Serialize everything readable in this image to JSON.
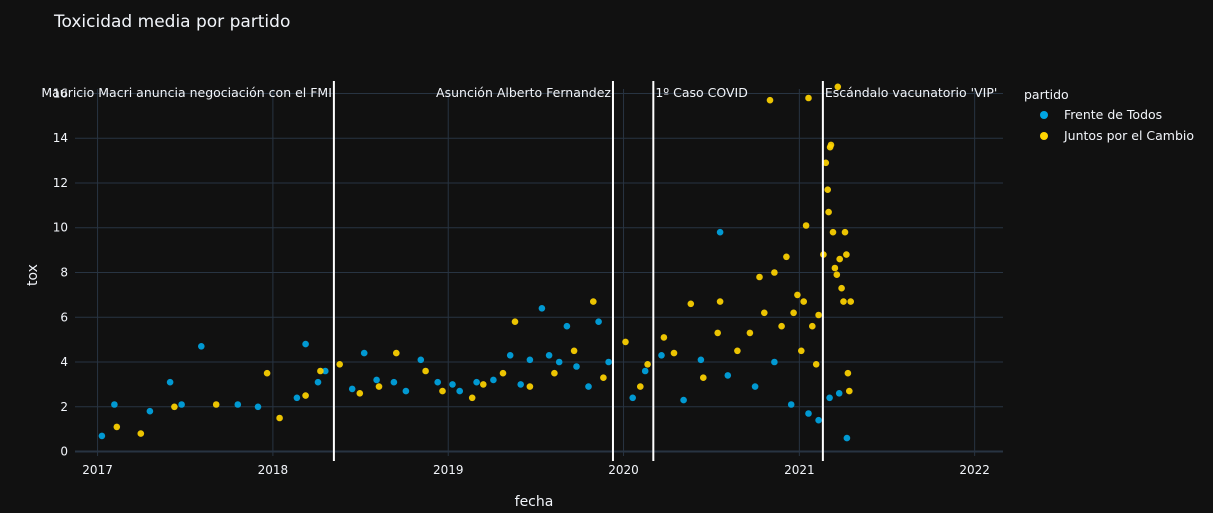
{
  "colors": {
    "background": "#111111",
    "grid": "#283442",
    "series_0": "#00a5e3",
    "series_1": "#ffd400",
    "event_line": "#ffffff"
  },
  "chart_data": {
    "type": "scatter",
    "title": "Toxicidad media por partido",
    "xlabel": "fecha",
    "ylabel": "tox",
    "xlim": [
      "2016-11-15",
      "2022-03-01"
    ],
    "ylim": [
      -0.2,
      16.2
    ],
    "xticks": [
      "2017",
      "2018",
      "2019",
      "2020",
      "2021",
      "2022"
    ],
    "yticks": [
      0,
      2,
      4,
      6,
      8,
      10,
      12,
      14,
      16
    ],
    "grid": true,
    "legend": {
      "title": "partido",
      "placement": "right",
      "entries": [
        "Frente de Todos",
        "Juntos por el Cambio"
      ]
    },
    "annotations": [
      {
        "date": "2018-05-08",
        "text": "Mauricio Macri anuncia negociación con el FMI"
      },
      {
        "date": "2019-12-10",
        "text": "Asunción Alberto Fernandez"
      },
      {
        "date": "2020-03-03",
        "text": "1º Caso COVID"
      },
      {
        "date": "2021-02-19",
        "text": "Escándalo vacunatorio 'VIP'"
      }
    ],
    "series": [
      {
        "name": "Frente de Todos",
        "points": [
          [
            "2017-01-10",
            0.7
          ],
          [
            "2017-02-05",
            2.1
          ],
          [
            "2017-04-20",
            1.8
          ],
          [
            "2017-06-01",
            3.1
          ],
          [
            "2017-06-25",
            2.1
          ],
          [
            "2017-08-05",
            4.7
          ],
          [
            "2017-10-20",
            2.1
          ],
          [
            "2017-12-01",
            2.0
          ],
          [
            "2018-02-20",
            2.4
          ],
          [
            "2018-03-10",
            4.8
          ],
          [
            "2018-04-05",
            3.1
          ],
          [
            "2018-04-20",
            3.6
          ],
          [
            "2018-06-15",
            2.8
          ],
          [
            "2018-07-10",
            4.4
          ],
          [
            "2018-08-05",
            3.2
          ],
          [
            "2018-09-10",
            3.1
          ],
          [
            "2018-10-05",
            2.7
          ],
          [
            "2018-11-05",
            4.1
          ],
          [
            "2018-12-10",
            3.1
          ],
          [
            "2019-01-10",
            3.0
          ],
          [
            "2019-01-25",
            2.7
          ],
          [
            "2019-03-01",
            3.1
          ],
          [
            "2019-04-05",
            3.2
          ],
          [
            "2019-05-10",
            4.3
          ],
          [
            "2019-06-01",
            3.0
          ],
          [
            "2019-06-20",
            4.1
          ],
          [
            "2019-07-15",
            6.4
          ],
          [
            "2019-07-30",
            4.3
          ],
          [
            "2019-08-20",
            4.0
          ],
          [
            "2019-09-05",
            5.6
          ],
          [
            "2019-09-25",
            3.8
          ],
          [
            "2019-10-20",
            2.9
          ],
          [
            "2019-11-10",
            5.8
          ],
          [
            "2019-12-01",
            4.0
          ],
          [
            "2020-01-20",
            2.4
          ],
          [
            "2020-02-15",
            3.6
          ],
          [
            "2020-03-20",
            4.3
          ],
          [
            "2020-05-05",
            2.3
          ],
          [
            "2020-06-10",
            4.1
          ],
          [
            "2020-07-20",
            9.8
          ],
          [
            "2020-08-05",
            3.4
          ],
          [
            "2020-10-01",
            2.9
          ],
          [
            "2020-11-10",
            4.0
          ],
          [
            "2020-12-15",
            2.1
          ],
          [
            "2021-01-20",
            1.7
          ],
          [
            "2021-02-10",
            1.4
          ],
          [
            "2021-03-05",
            2.4
          ],
          [
            "2021-03-25",
            2.6
          ],
          [
            "2021-04-10",
            0.6
          ]
        ]
      },
      {
        "name": "Juntos por el Cambio",
        "points": [
          [
            "2017-02-10",
            1.1
          ],
          [
            "2017-04-01",
            0.8
          ],
          [
            "2017-06-10",
            2.0
          ],
          [
            "2017-09-05",
            2.1
          ],
          [
            "2017-12-20",
            3.5
          ],
          [
            "2018-01-15",
            1.5
          ],
          [
            "2018-03-10",
            2.5
          ],
          [
            "2018-04-10",
            3.6
          ],
          [
            "2018-05-20",
            3.9
          ],
          [
            "2018-07-01",
            2.6
          ],
          [
            "2018-08-10",
            2.9
          ],
          [
            "2018-09-15",
            4.4
          ],
          [
            "2018-11-15",
            3.6
          ],
          [
            "2018-12-20",
            2.7
          ],
          [
            "2019-02-20",
            2.4
          ],
          [
            "2019-03-15",
            3.0
          ],
          [
            "2019-04-25",
            3.5
          ],
          [
            "2019-05-20",
            5.8
          ],
          [
            "2019-06-20",
            2.9
          ],
          [
            "2019-08-10",
            3.5
          ],
          [
            "2019-09-20",
            4.5
          ],
          [
            "2019-10-30",
            6.7
          ],
          [
            "2019-11-20",
            3.3
          ],
          [
            "2020-01-05",
            4.9
          ],
          [
            "2020-02-05",
            2.9
          ],
          [
            "2020-02-20",
            3.9
          ],
          [
            "2020-03-25",
            5.1
          ],
          [
            "2020-04-15",
            4.4
          ],
          [
            "2020-05-20",
            6.6
          ],
          [
            "2020-06-15",
            3.3
          ],
          [
            "2020-07-15",
            5.3
          ],
          [
            "2020-07-20",
            6.7
          ],
          [
            "2020-08-25",
            4.5
          ],
          [
            "2020-09-20",
            5.3
          ],
          [
            "2020-10-10",
            7.8
          ],
          [
            "2020-10-20",
            6.2
          ],
          [
            "2020-11-01",
            15.7
          ],
          [
            "2020-11-10",
            8.0
          ],
          [
            "2020-11-25",
            5.6
          ],
          [
            "2020-12-05",
            8.7
          ],
          [
            "2020-12-20",
            6.2
          ],
          [
            "2020-12-28",
            7.0
          ],
          [
            "2021-01-05",
            4.5
          ],
          [
            "2021-01-10",
            6.7
          ],
          [
            "2021-01-15",
            10.1
          ],
          [
            "2021-01-20",
            15.8
          ],
          [
            "2021-01-28",
            5.6
          ],
          [
            "2021-02-05",
            3.9
          ],
          [
            "2021-02-10",
            6.1
          ],
          [
            "2021-02-20",
            8.8
          ],
          [
            "2021-02-25",
            12.9
          ],
          [
            "2021-03-01",
            11.7
          ],
          [
            "2021-03-03",
            10.7
          ],
          [
            "2021-03-06",
            13.6
          ],
          [
            "2021-03-08",
            13.7
          ],
          [
            "2021-03-12",
            9.8
          ],
          [
            "2021-03-16",
            8.2
          ],
          [
            "2021-03-20",
            7.9
          ],
          [
            "2021-03-22",
            16.3
          ],
          [
            "2021-03-26",
            8.6
          ],
          [
            "2021-03-30",
            7.3
          ],
          [
            "2021-04-03",
            6.7
          ],
          [
            "2021-04-06",
            9.8
          ],
          [
            "2021-04-09",
            8.8
          ],
          [
            "2021-04-12",
            3.5
          ],
          [
            "2021-04-15",
            2.7
          ],
          [
            "2021-04-18",
            6.7
          ]
        ]
      }
    ]
  }
}
